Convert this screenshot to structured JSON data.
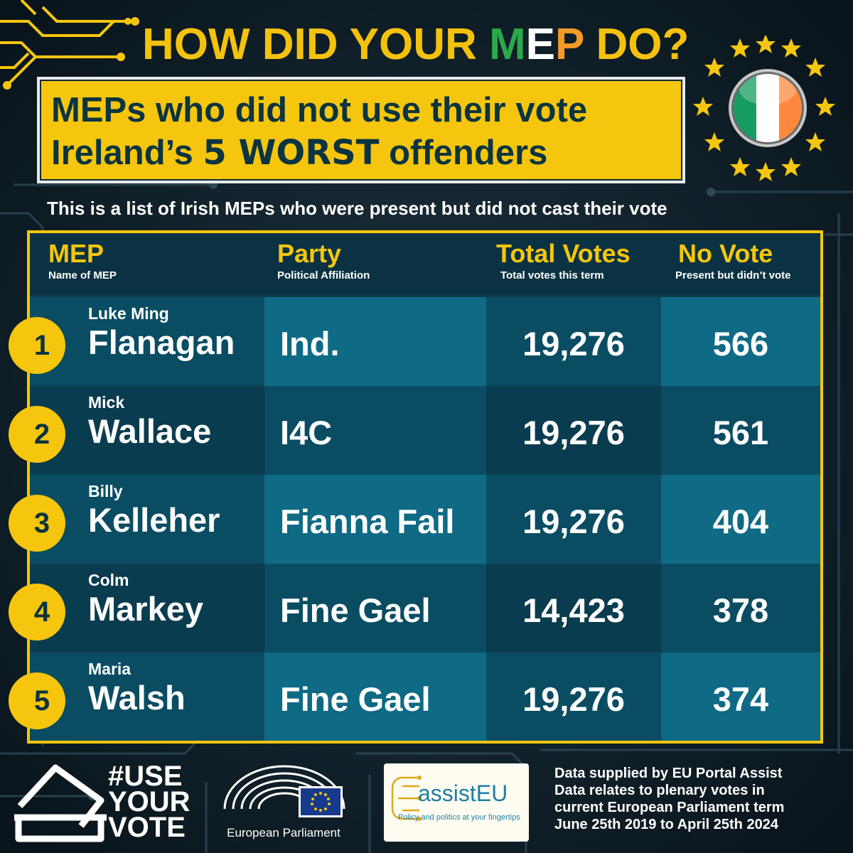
{
  "headline": {
    "part1": "HOW DID YOUR ",
    "m": "M",
    "e": "E",
    "p": "P",
    "part2": " DO?"
  },
  "title": {
    "line1": "MEPs who did not use their vote",
    "line2_pre": "Ireland’s ",
    "line2_bold": "5 WORST",
    "line2_post": " offenders"
  },
  "subtitle": "This is a list of Irish MEPs who were present but did not cast their vote",
  "columns": [
    {
      "header": "MEP",
      "sub": "Name of MEP"
    },
    {
      "header": "Party",
      "sub": "Political Affiliation"
    },
    {
      "header": "Total Votes",
      "sub": "Total votes this term"
    },
    {
      "header": "No Vote",
      "sub": "Present but didn’t vote"
    }
  ],
  "rows": [
    {
      "rank": "1",
      "first": "Luke Ming",
      "last": "Flanagan",
      "party": "Ind.",
      "total": "19,276",
      "novote": "566"
    },
    {
      "rank": "2",
      "first": "Mick",
      "last": "Wallace",
      "party": "I4C",
      "total": "19,276",
      "novote": "561"
    },
    {
      "rank": "3",
      "first": "Billy",
      "last": "Kelleher",
      "party": "Fianna Fail",
      "total": "19,276",
      "novote": "404"
    },
    {
      "rank": "4",
      "first": "Colm",
      "last": "Markey",
      "party": "Fine Gael",
      "total": "14,423",
      "novote": "378"
    },
    {
      "rank": "5",
      "first": "Maria",
      "last": "Walsh",
      "party": "Fine Gael",
      "total": "19,276",
      "novote": "374"
    }
  ],
  "footer": {
    "campaign": [
      "#USE",
      "YOUR",
      "VOTE"
    ],
    "ep_label": "European Parliament",
    "assist_name_a": "assist",
    "assist_name_b": "EU",
    "assist_tagline": "Policy and politics at your fingertips",
    "source_lines": [
      "Data supplied by EU Portal Assist",
      "Data relates to plenary votes in",
      "current European Parliament term",
      "June 25th 2019 to April 25th 2024"
    ]
  },
  "colors": {
    "accent_yellow": "#f5c60d",
    "headline_green": "#2aa84a",
    "headline_orange": "#f39a27",
    "table_dark": "#0a3c4f",
    "table_light": "#0f6a85",
    "flag_green": "#169b62",
    "flag_white": "#ffffff",
    "flag_orange": "#ff883e"
  },
  "icons": [
    "circuit-decoration-icon",
    "eu-stars-icon",
    "ireland-flag-icon",
    "ballot-box-icon",
    "parliament-hemicycle-icon",
    "eu-flag-icon"
  ]
}
